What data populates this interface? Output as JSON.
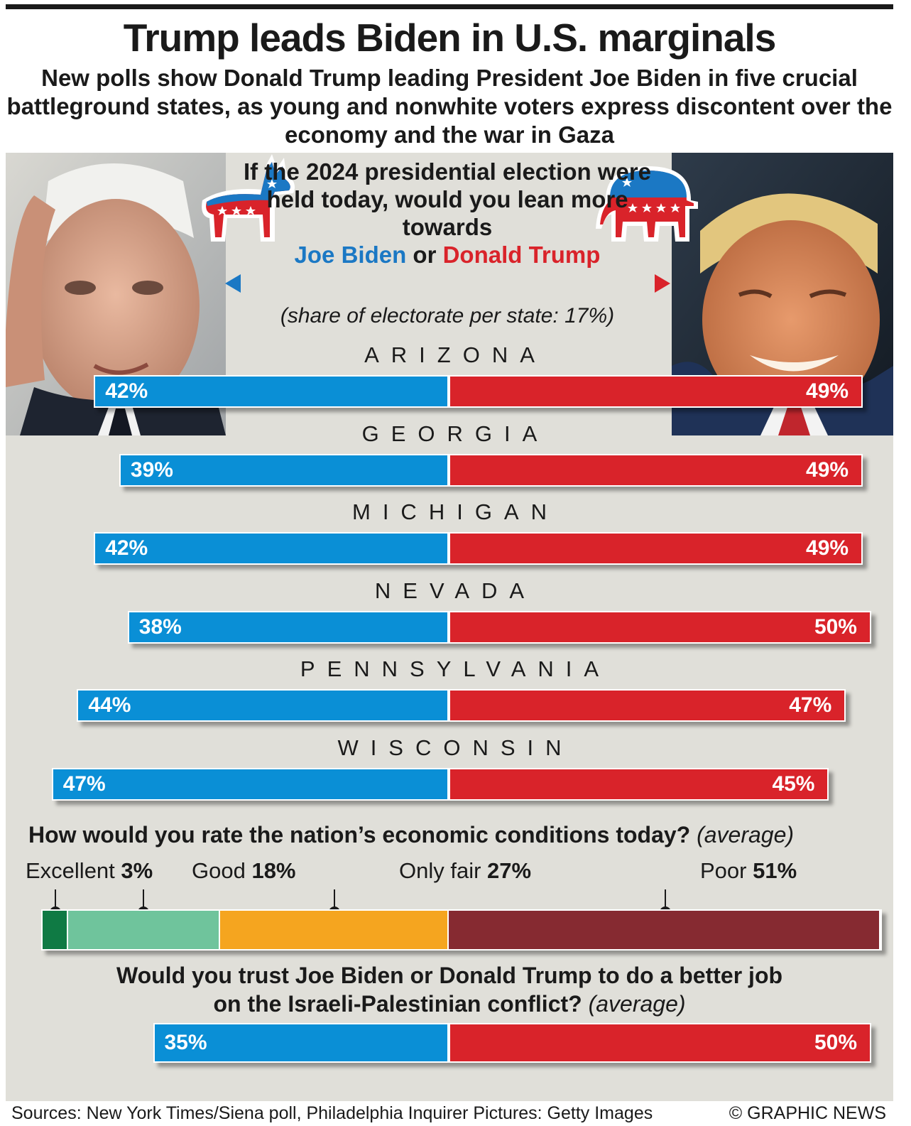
{
  "title": "Trump leads Biden in U.S. marginals",
  "subtitle": "New polls show Donald Trump leading President Joe Biden in five crucial battleground states, as young and nonwhite voters express discontent over the economy and the war in Gaza",
  "question": {
    "text": "If the 2024 presidential election were held today, would you lean more towards",
    "biden": "Joe Biden",
    "or": "or",
    "trump": "Donald Trump",
    "note": "(share of electorate per state: 17%)"
  },
  "colors": {
    "biden": "#0a8fd6",
    "trump": "#d9232a",
    "panel": "#e0dfd9"
  },
  "icons": {
    "democrat": "donkey-icon",
    "republican": "elephant-icon",
    "biden_photo": "biden-photo",
    "trump_photo": "trump-photo"
  },
  "chart_data": [
    {
      "type": "bar",
      "orientation": "horizontal-diverging",
      "categories": [
        "ARIZONA",
        "GEORGIA",
        "MICHIGAN",
        "NEVADA",
        "PENNSYLVANIA",
        "WISCONSIN"
      ],
      "series": [
        {
          "name": "Joe Biden",
          "values": [
            42,
            39,
            42,
            38,
            44,
            47
          ],
          "labels": [
            "42%",
            "39%",
            "42%",
            "38%",
            "44%",
            "47%"
          ]
        },
        {
          "name": "Donald Trump",
          "values": [
            49,
            49,
            49,
            50,
            47,
            45
          ],
          "labels": [
            "49%",
            "49%",
            "49%",
            "50%",
            "47%",
            "45%"
          ]
        }
      ]
    },
    {
      "type": "bar",
      "orientation": "stacked-horizontal",
      "title": "How would you rate the nation’s economic conditions today?",
      "title_note": "(average)",
      "categories": [
        "Excellent",
        "Good",
        "Only fair",
        "Poor"
      ],
      "values": [
        3,
        18,
        27,
        51
      ],
      "labels": [
        "3%",
        "18%",
        "27%",
        "51%"
      ],
      "colors": [
        "#0f7a44",
        "#6fc49c",
        "#f5a51f",
        "#862a31"
      ]
    },
    {
      "type": "bar",
      "orientation": "horizontal-diverging",
      "title": "Would you trust Joe Biden or Donald Trump to do a better job on the Israeli-Palestinian conflict?",
      "title_note": "(average)",
      "series": [
        {
          "name": "Joe Biden",
          "values": [
            35
          ],
          "labels": [
            "35%"
          ]
        },
        {
          "name": "Donald Trump",
          "values": [
            50
          ],
          "labels": [
            "50%"
          ]
        }
      ]
    }
  ],
  "econ": {
    "question": "How would you rate the nation’s economic conditions today?",
    "note": "(average)"
  },
  "trust": {
    "line1": "Would you trust Joe Biden or Donald Trump to do a better job",
    "line2": "on the Israeli-Palestinian conflict?",
    "note": "(average)"
  },
  "footer": {
    "sources": "Sources: New York Times/Siena poll, Philadelphia Inquirer  Pictures: Getty Images",
    "copyright": "© GRAPHIC NEWS"
  }
}
